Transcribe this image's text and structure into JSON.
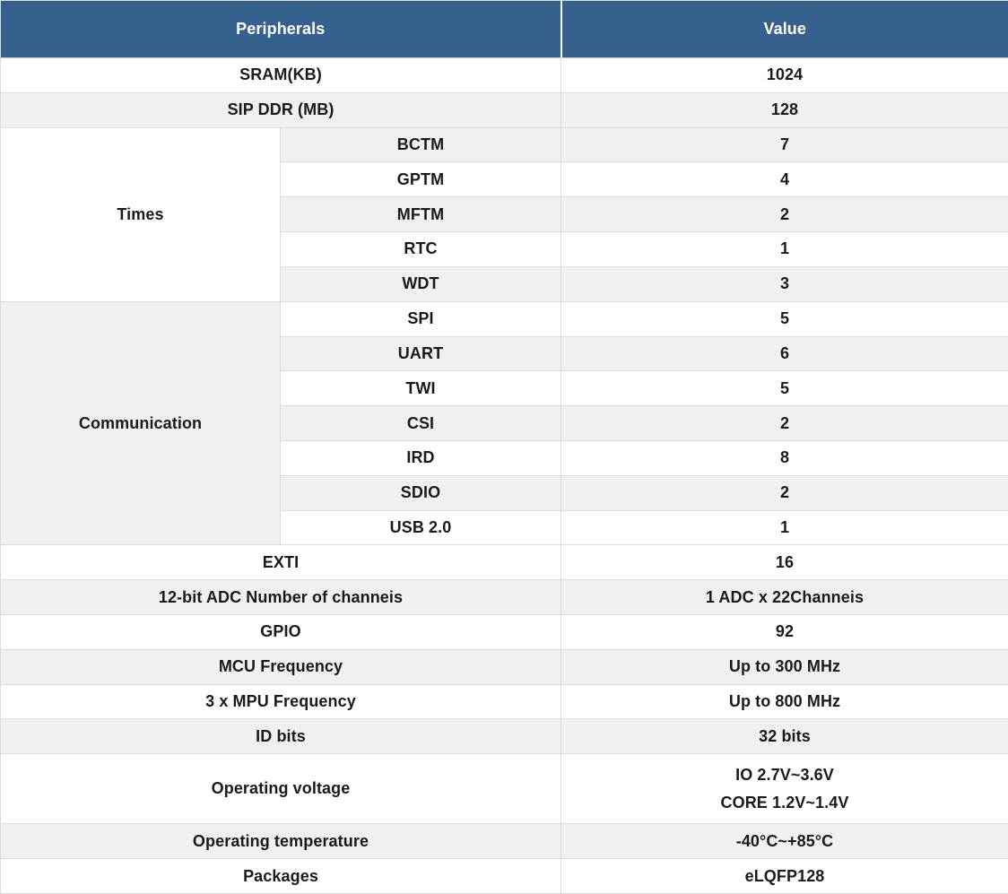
{
  "table": {
    "header": {
      "peripherals": "Peripherals",
      "value": "Value"
    },
    "colors": {
      "header_bg": "#36618F",
      "header_text": "#FFFFFF",
      "stripe_bg": "#F0F0F0",
      "white_bg": "#FFFFFF",
      "border": "#DBDBDB",
      "text": "#1A1A1A"
    },
    "rows_top": [
      {
        "label": "SRAM(KB)",
        "value": "1024",
        "stripe": false
      },
      {
        "label": "SIP DDR (MB)",
        "value": "128",
        "stripe": true
      }
    ],
    "groups": [
      {
        "label": "Times",
        "stripe": false,
        "rows": [
          {
            "label": "BCTM",
            "value": "7",
            "stripe": true
          },
          {
            "label": "GPTM",
            "value": "4",
            "stripe": false
          },
          {
            "label": "MFTM",
            "value": "2",
            "stripe": true
          },
          {
            "label": "RTC",
            "value": "1",
            "stripe": false
          },
          {
            "label": "WDT",
            "value": "3",
            "stripe": true
          }
        ]
      },
      {
        "label": "Communication",
        "stripe": true,
        "rows": [
          {
            "label": "SPI",
            "value": "5",
            "stripe": false
          },
          {
            "label": "UART",
            "value": "6",
            "stripe": true
          },
          {
            "label": "TWI",
            "value": "5",
            "stripe": false
          },
          {
            "label": "CSI",
            "value": "2",
            "stripe": true
          },
          {
            "label": "IRD",
            "value": "8",
            "stripe": false
          },
          {
            "label": "SDIO",
            "value": "2",
            "stripe": true
          },
          {
            "label": "USB 2.0",
            "value": "1",
            "stripe": false
          }
        ]
      }
    ],
    "rows_bottom": [
      {
        "label": "EXTI",
        "value": "16",
        "stripe": false
      },
      {
        "label": "12-bit ADC Number of channeis",
        "value": "1 ADC x 22Channeis",
        "stripe": true
      },
      {
        "label": "GPIO",
        "value": "92",
        "stripe": false
      },
      {
        "label": "MCU Frequency",
        "value": "Up to 300 MHz",
        "stripe": true
      },
      {
        "label": "3 x MPU Frequency",
        "value": "Up to 800 MHz",
        "stripe": false
      },
      {
        "label": "ID bits",
        "value": "32 bits",
        "stripe": true
      },
      {
        "label": "Operating voltage",
        "value_lines": [
          "IO 2.7V~3.6V",
          "CORE 1.2V~1.4V"
        ],
        "stripe": false,
        "tall": true
      },
      {
        "label": "Operating temperature",
        "value": "-40°C~+85°C",
        "stripe": true
      },
      {
        "label": "Packages",
        "value": "eLQFP128",
        "stripe": false
      }
    ]
  }
}
